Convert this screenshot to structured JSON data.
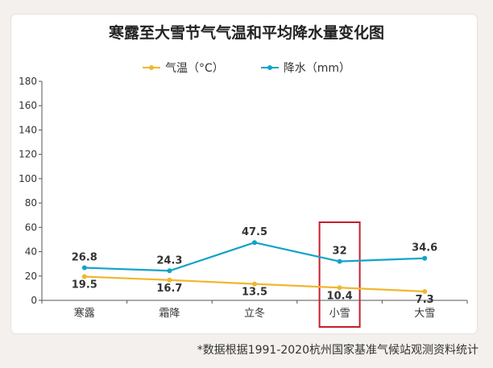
{
  "chart_data": {
    "type": "line",
    "title": "寒露至大雪节气气温和平均降水量变化图",
    "categories": [
      "寒露",
      "霜降",
      "立冬",
      "小雪",
      "大雪"
    ],
    "series": [
      {
        "name": "气温（°C）",
        "values": [
          19.5,
          16.7,
          13.5,
          10.4,
          7.3
        ],
        "color": "#f0b72f"
      },
      {
        "name": "降水（mm）",
        "values": [
          26.8,
          24.3,
          47.5,
          32,
          34.6
        ],
        "color": "#12a3c7"
      }
    ],
    "ylim": [
      0,
      180
    ],
    "yticks": [
      0,
      20,
      40,
      60,
      80,
      100,
      120,
      140,
      160,
      180
    ],
    "grid": false,
    "legend_position": "top-center",
    "highlight_category": "小雪",
    "highlight_color": "#c41f2b",
    "footnote": "*数据根据1991-2020杭州国家基准气候站观测资料统计"
  }
}
